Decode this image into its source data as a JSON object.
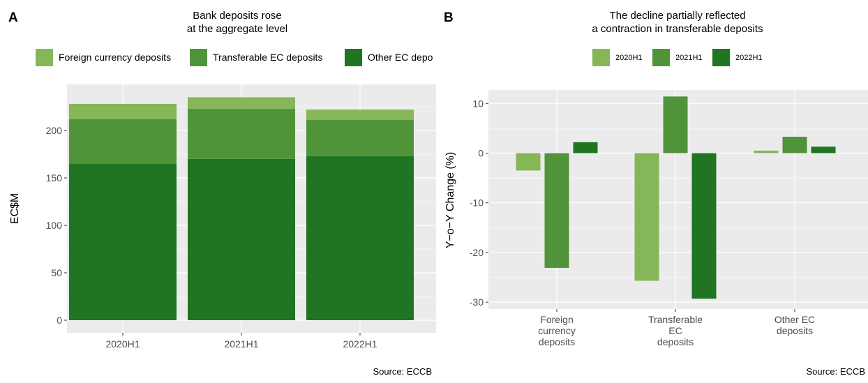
{
  "colors": {
    "foreign": "#85b657",
    "transferable": "#50943a",
    "other": "#217421",
    "panel_bg": "#ebebeb",
    "grid": "#ffffff"
  },
  "chart_data": [
    {
      "type": "bar",
      "stacked": true,
      "panel_label": "A",
      "title": "Bank deposits rose",
      "subtitle": "at the aggregate level",
      "xlabel": "",
      "ylabel": "EC$M",
      "categories": [
        "2020H1",
        "2021H1",
        "2022H1"
      ],
      "series": [
        {
          "name": "Foreign currency deposits",
          "values": [
            16,
            12,
            11
          ]
        },
        {
          "name": "Transferable EC deposits",
          "values": [
            47,
            53,
            38
          ]
        },
        {
          "name": "Other EC depo",
          "values": [
            165,
            170,
            173
          ]
        }
      ],
      "legend_position": "top",
      "ylim": [
        0,
        240
      ],
      "yticks": [
        0,
        50,
        100,
        150,
        200
      ],
      "grid": true,
      "source": "Source: ECCB"
    },
    {
      "type": "bar",
      "stacked": false,
      "panel_label": "B",
      "title": "The decline partially reflected",
      "subtitle": "a contraction in transferable deposits",
      "xlabel": "",
      "ylabel": "Y−o−Y Change (%)",
      "categories": [
        [
          "Foreign",
          "currency",
          "deposits"
        ],
        [
          "Transferable",
          "EC",
          "deposits"
        ],
        [
          "Other EC",
          "deposits"
        ]
      ],
      "series": [
        {
          "name": "2020H1",
          "values": [
            -3.5,
            -25.7,
            0.5
          ]
        },
        {
          "name": "2021H1",
          "values": [
            -23.1,
            11.4,
            3.3
          ]
        },
        {
          "name": "2022H1",
          "values": [
            2.2,
            -29.3,
            1.3
          ]
        }
      ],
      "legend_position": "top",
      "ylim": [
        -31.5,
        13
      ],
      "yticks": [
        -30,
        -20,
        -10,
        0,
        10
      ],
      "grid": true,
      "source": "Source: ECCB"
    }
  ]
}
